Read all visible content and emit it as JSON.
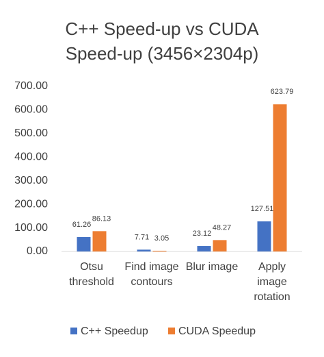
{
  "chart_data": {
    "type": "bar",
    "title": "C++ Speed-up vs CUDA Speed-up (3456×2304p)",
    "categories": [
      "Otsu threshold",
      "Find image contours",
      "Blur image",
      "Apply image rotation"
    ],
    "series": [
      {
        "name": "C++ Speedup",
        "color": "#4472c4",
        "values": [
          61.26,
          7.71,
          23.12,
          127.51
        ]
      },
      {
        "name": "CUDA Speedup",
        "color": "#ed7d31",
        "values": [
          86.13,
          3.05,
          48.27,
          623.79
        ]
      }
    ],
    "ylim": [
      0,
      700
    ],
    "yticks": [
      {
        "value": 0,
        "label": "0.00"
      },
      {
        "value": 100,
        "label": "100.00"
      },
      {
        "value": 200,
        "label": "200.00"
      },
      {
        "value": 300,
        "label": "300.00"
      },
      {
        "value": 400,
        "label": "400.00"
      },
      {
        "value": 500,
        "label": "500.00"
      },
      {
        "value": 600,
        "label": "600.00"
      },
      {
        "value": 700,
        "label": "700.00"
      }
    ],
    "grid": false,
    "legend": "bottom"
  }
}
